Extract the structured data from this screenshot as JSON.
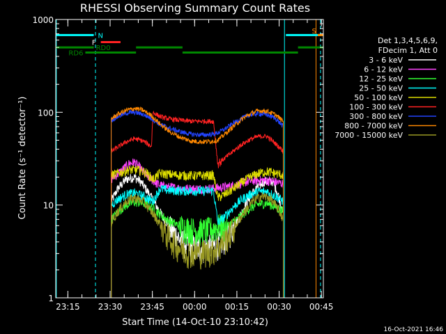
{
  "chart_data": {
    "type": "line",
    "title": "RHESSI Observing Summary Count Rates",
    "xlabel": "Start Time (14-Oct-10 23:10:42)",
    "ylabel": "Count Rate (s⁻¹ detector⁻¹)",
    "ylim": [
      1,
      1000
    ],
    "log_y": true,
    "xlim_minutes": [
      0,
      95
    ],
    "x_ticks": [
      {
        "label": "23:15",
        "minute": 4.3
      },
      {
        "label": "23:30",
        "minute": 19.3
      },
      {
        "label": "23:45",
        "minute": 34.3
      },
      {
        "label": "00:00",
        "minute": 49.3
      },
      {
        "label": "00:15",
        "minute": 64.3
      },
      {
        "label": "00:30",
        "minute": 79.3
      },
      {
        "label": "00:45",
        "minute": 94.3
      }
    ],
    "y_ticks": [
      {
        "label": "1",
        "value": 1
      },
      {
        "label": "10",
        "value": 10
      },
      {
        "label": "100",
        "value": 100
      },
      {
        "label": "1000",
        "value": 1000
      }
    ],
    "legend_header": [
      "Det 1,3,4,5,6,9,",
      "FDecim 1, Att 0"
    ],
    "legend_placement": "right",
    "series": [
      {
        "name": "3 - 6 keV",
        "color": "#ffffff",
        "start": 19.7,
        "end": 80.8,
        "x": [
          19.7,
          22,
          25,
          28,
          30,
          32,
          34,
          36,
          38,
          41,
          44,
          47,
          50,
          53,
          56,
          59,
          62,
          65,
          68,
          71,
          74,
          77,
          79,
          80.8
        ],
        "y": [
          11,
          15,
          19,
          20,
          18,
          15,
          12,
          9.5,
          7.5,
          5.5,
          4.3,
          3.7,
          3.5,
          3.5,
          3.6,
          4.1,
          5.2,
          7.2,
          11,
          15,
          18,
          18,
          13,
          8
        ]
      },
      {
        "name": "6 - 12 keV",
        "color": "#ff44ff",
        "start": 19.7,
        "end": 80.8,
        "x": [
          19.7,
          23,
          26,
          28,
          30,
          32,
          34,
          36,
          38,
          41,
          44,
          47,
          50,
          53,
          56,
          59,
          62,
          65,
          68,
          71,
          74,
          77,
          80.8
        ],
        "y": [
          19,
          23,
          28,
          29,
          25,
          21,
          19,
          17,
          16,
          15.5,
          15.2,
          15,
          15,
          15,
          15.2,
          15.5,
          16,
          17,
          18,
          18.5,
          18.5,
          18,
          17
        ]
      },
      {
        "name": "12 - 25 keV",
        "color": "#33ff33",
        "start": 19.7,
        "end": 80.8,
        "x": [
          19.7,
          22,
          25,
          28,
          31,
          34,
          37,
          40,
          44,
          48,
          52,
          56,
          58,
          60,
          63,
          66,
          69,
          72,
          75,
          78,
          80.8
        ],
        "y": [
          7,
          8.5,
          10,
          10.8,
          10.5,
          9.5,
          8,
          6.8,
          6,
          5.5,
          5.3,
          5.6,
          6,
          5.8,
          6.5,
          7.8,
          9.3,
          10.2,
          10.5,
          9.6,
          8.5
        ]
      },
      {
        "name": "25 - 50 keV",
        "color": "#00ffff",
        "start": 19.7,
        "end": 80.8,
        "x": [
          19.7,
          22,
          25,
          28,
          31,
          34.5,
          37,
          40,
          44,
          48,
          52,
          56,
          57.5,
          60,
          63,
          66,
          69,
          72,
          75,
          78,
          80.8
        ],
        "y": [
          10,
          11.5,
          13,
          13.5,
          12.5,
          11,
          15,
          14.5,
          14.3,
          14.2,
          14.2,
          14.3,
          6.5,
          7.5,
          9.5,
          11.5,
          13,
          14,
          14,
          12.5,
          11
        ]
      },
      {
        "name": "50 - 100 keV",
        "color": "#dddd00",
        "start": 19.7,
        "end": 80.8,
        "x": [
          19.7,
          23,
          26,
          29,
          32,
          34.5,
          37,
          40,
          44,
          48,
          52,
          56,
          57.5,
          60,
          63,
          66,
          69,
          72,
          75,
          78,
          80.8
        ],
        "y": [
          21,
          22.5,
          24,
          24,
          22.5,
          19,
          22,
          21.5,
          21,
          20.8,
          20.8,
          21,
          12,
          13,
          15,
          17.5,
          20,
          22,
          23,
          22,
          21
        ]
      },
      {
        "name": "100 - 300 keV",
        "color": "#ff2222",
        "start": 19.7,
        "end": 80.8,
        "x": [
          19.7,
          22,
          25,
          28,
          31,
          34,
          34.5,
          37,
          40,
          44,
          48,
          52,
          56,
          57.5,
          60,
          63,
          66,
          69,
          72,
          75,
          78,
          80.8
        ],
        "y": [
          38,
          42,
          48,
          52,
          49,
          43,
          100,
          90,
          85,
          82,
          80,
          80,
          80,
          28,
          32,
          38,
          45,
          51,
          55,
          55,
          46,
          38
        ]
      },
      {
        "name": "300 - 800 keV",
        "color": "#2244ff",
        "start": 19.7,
        "end": 80.8,
        "x": [
          19.7,
          22,
          25,
          28,
          31,
          34,
          37,
          40,
          44,
          48,
          52,
          56,
          57.5,
          60,
          63,
          66,
          69,
          72,
          75,
          78,
          80.8
        ],
        "y": [
          82,
          90,
          98,
          100,
          95,
          86,
          74,
          68,
          62,
          58,
          57,
          58,
          60,
          66,
          76,
          86,
          94,
          97,
          94,
          86,
          70
        ]
      },
      {
        "name": "800 - 7000 keV",
        "color": "#ff8800",
        "start": 19.7,
        "end": 80.8,
        "x": [
          19.7,
          22,
          25,
          28,
          31,
          34,
          37,
          40,
          44,
          48,
          52,
          56,
          57.5,
          60,
          63,
          66,
          69,
          72,
          75,
          78,
          80.8
        ],
        "y": [
          85,
          95,
          105,
          110,
          105,
          92,
          75,
          63,
          54,
          49,
          48,
          49,
          50,
          58,
          70,
          84,
          96,
          104,
          103,
          94,
          80
        ]
      },
      {
        "name": "7000 - 15000 keV",
        "color": "#999922",
        "start": 19.7,
        "end": 80.8,
        "x": [
          19.7,
          22,
          25,
          28,
          31,
          34,
          37,
          40,
          43,
          46,
          49,
          52,
          55,
          58,
          61,
          64,
          67,
          70,
          73,
          76,
          79,
          80.8
        ],
        "y": [
          6.5,
          8.5,
          11,
          12,
          11,
          8.5,
          6.3,
          4.6,
          3.7,
          3.2,
          3.1,
          3.1,
          3.2,
          3.6,
          4.6,
          6.2,
          8.5,
          11,
          12.5,
          12,
          9,
          7
        ]
      }
    ],
    "bars": [
      {
        "label": "N",
        "color": "#00ffff",
        "level": 680,
        "segments": [
          [
            0,
            13.5
          ],
          [
            81.7,
            95
          ]
        ]
      },
      {
        "label": "F",
        "color": "#ff2222",
        "level": 570,
        "segments": [
          [
            16,
            23
          ]
        ]
      },
      {
        "label": "RD0",
        "color": "#008800",
        "level": 500,
        "segments": [
          [
            0,
            13.5
          ],
          [
            28.5,
            45
          ],
          [
            86,
            95
          ]
        ]
      },
      {
        "label": "RD6",
        "color": "#008800",
        "level": 440,
        "segments": [
          [
            10.5,
            28.5
          ],
          [
            45,
            86
          ]
        ]
      },
      {
        "label": "S",
        "color": "#ff8800",
        "level": 680,
        "segments": [
          [
            93,
            95
          ]
        ]
      }
    ],
    "vertical_markers": [
      {
        "minute": 0.2,
        "color": "#00ffff",
        "style": "solid"
      },
      {
        "minute": 14.1,
        "color": "#00ffff",
        "style": "dashed"
      },
      {
        "minute": 81.2,
        "color": "#00ffff",
        "style": "solid"
      },
      {
        "minute": 92.4,
        "color": "#ff8800",
        "style": "solid"
      },
      {
        "minute": 94.0,
        "color": "#00ffff",
        "style": "dashed"
      }
    ]
  },
  "footer": {
    "timestamp": "16-Oct-2021 16:46"
  }
}
